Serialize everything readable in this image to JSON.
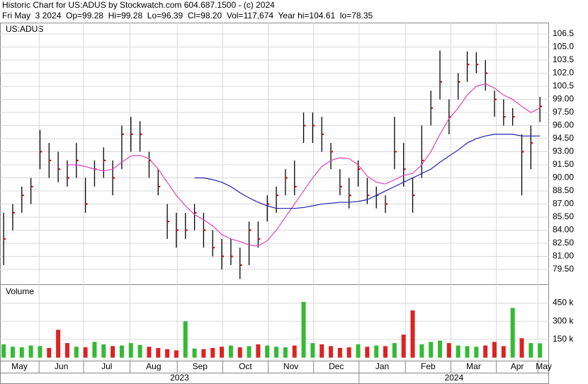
{
  "chart_data": {
    "type": "ohlc",
    "title": "Historic Chart for US:ADUS by Stockwatch.com 604.687.1500 - (c) 2024",
    "subtitle": "Fri May  3 2024  Op=99.28  Hi=99.28  Lo=96.39  Cl=98.20  Vol=117,674  Year hi=104.61  lo=78.35",
    "symbol": "US:ADUS",
    "volume_label": "Volume",
    "x": [
      0,
      1,
      2,
      3,
      4,
      5,
      6,
      7,
      8,
      9,
      10,
      11,
      12,
      13,
      14,
      15,
      16,
      17,
      18,
      19,
      20,
      21,
      22,
      23,
      24,
      25,
      26,
      27,
      28,
      29,
      30,
      31,
      32,
      33,
      34,
      35,
      36,
      37,
      38,
      39,
      40,
      41,
      42,
      43,
      44,
      45,
      46,
      47,
      48,
      49,
      50,
      51,
      52,
      53,
      54,
      55,
      56,
      57,
      58,
      59
    ],
    "xlim": [
      -0.4,
      60
    ],
    "xticks": [
      {
        "value": -0.4,
        "label": "May"
      },
      {
        "value": 3.9,
        "label": "Jun"
      },
      {
        "value": 8.8,
        "label": "Jul"
      },
      {
        "value": 13.9,
        "label": "Aug"
      },
      {
        "value": 19.1,
        "label": "Sep"
      },
      {
        "value": 24.1,
        "label": "Oct"
      },
      {
        "value": 29.1,
        "label": "Nov"
      },
      {
        "value": 34.1,
        "label": "Dec"
      },
      {
        "value": 39.1,
        "label": "Jan"
      },
      {
        "value": 44.2,
        "label": "Feb"
      },
      {
        "value": 49.2,
        "label": "Mar"
      },
      {
        "value": 54.2,
        "label": "Apr"
      },
      {
        "value": 58.8,
        "label": "May"
      }
    ],
    "years": [
      {
        "value": -0.4,
        "label": "2023"
      },
      {
        "value": 39.1,
        "label": "2024"
      }
    ],
    "high": [
      86,
      87,
      89,
      90,
      95.5,
      94,
      93,
      92,
      94,
      90,
      92,
      93.5,
      92,
      96,
      97,
      96.5,
      93,
      91,
      87,
      86,
      86,
      87,
      86,
      84,
      83,
      83,
      82,
      85,
      85,
      88,
      89,
      91,
      92,
      97.5,
      97.5,
      97,
      94,
      91,
      90,
      92,
      90,
      89,
      88,
      97,
      94,
      90,
      96,
      100,
      104.6,
      99,
      102,
      104.5,
      104.4,
      103.5,
      100,
      99,
      98,
      95,
      96,
      99.3
    ],
    "low": [
      80,
      84,
      86,
      87,
      91,
      90,
      89.5,
      89,
      90,
      86,
      89,
      90,
      88,
      91,
      93,
      93,
      90,
      88,
      83,
      82,
      83,
      84,
      82,
      81,
      79.5,
      80,
      78.4,
      80,
      82,
      85,
      86,
      88,
      88,
      94,
      94,
      93,
      91,
      88,
      86.5,
      89,
      87,
      86.5,
      86,
      91,
      89,
      86,
      90,
      96,
      99,
      95,
      99,
      101,
      102,
      100,
      97,
      96,
      96,
      88,
      91,
      96.4
    ],
    "close": [
      83,
      86,
      88,
      89,
      93,
      92,
      91,
      90,
      92,
      87,
      91,
      92,
      90,
      95,
      95,
      95,
      92,
      89,
      85,
      84,
      84,
      86,
      84,
      82,
      81,
      81,
      80,
      84,
      83,
      87,
      88,
      90,
      89,
      96,
      96,
      95,
      93,
      89,
      88,
      91,
      88,
      88,
      87,
      93,
      91,
      88,
      92,
      98,
      101,
      97,
      101,
      103,
      103,
      102,
      99,
      97,
      97,
      93,
      94,
      98.2
    ],
    "ma_short": {
      "color": "#e040c0",
      "values": [
        null,
        null,
        null,
        null,
        null,
        null,
        null,
        91.5,
        91.5,
        91.3,
        91,
        90.8,
        91,
        91.8,
        92.5,
        92.6,
        92.2,
        91,
        89.5,
        88,
        86.8,
        85.8,
        85.2,
        84.5,
        83.5,
        83,
        82.7,
        82.3,
        82.2,
        82.8,
        84,
        85.5,
        87,
        88.5,
        90,
        91.3,
        92,
        92.3,
        92.2,
        91.5,
        90.2,
        89.5,
        89.3,
        89.8,
        90.3,
        90.5,
        91.5,
        93,
        95,
        96.8,
        98,
        99.5,
        100.5,
        100.8,
        100.3,
        99.5,
        99,
        98.2,
        97.5,
        98
      ]
    },
    "ma_long": {
      "color": "#2020b0",
      "values": [
        null,
        null,
        null,
        null,
        null,
        null,
        null,
        null,
        null,
        null,
        null,
        null,
        null,
        null,
        null,
        null,
        null,
        null,
        null,
        null,
        null,
        90,
        90,
        89.8,
        89.5,
        89,
        88.3,
        87.7,
        87.2,
        86.8,
        86.5,
        86.5,
        86.5,
        86.6,
        86.8,
        87,
        87.1,
        87.2,
        87.2,
        87.3,
        87.5,
        88,
        88.5,
        89,
        89.5,
        90,
        90.5,
        91,
        91.8,
        92.5,
        93.2,
        94,
        94.5,
        94.8,
        95,
        95,
        95,
        94.8,
        94.8,
        94.8
      ]
    },
    "volume": [
      110000,
      90000,
      85000,
      100000,
      95000,
      80000,
      230000,
      120000,
      90000,
      85000,
      130000,
      110000,
      95000,
      100000,
      120000,
      105000,
      90000,
      80000,
      70000,
      60000,
      300000,
      75000,
      70000,
      80000,
      90000,
      100000,
      85000,
      95000,
      110000,
      100000,
      90000,
      85000,
      100000,
      460000,
      120000,
      110000,
      95000,
      80000,
      85000,
      110000,
      90000,
      100000,
      95000,
      120000,
      190000,
      390000,
      110000,
      130000,
      140000,
      120000,
      100000,
      95000,
      90000,
      100000,
      130000,
      95000,
      410000,
      160000,
      120000,
      117674
    ],
    "ylim": [
      77.8,
      107.8
    ],
    "yticks": [
      {
        "value": 79.5,
        "label": "79.50"
      },
      {
        "value": 81,
        "label": "81.00"
      },
      {
        "value": 82.5,
        "label": "82.50"
      },
      {
        "value": 84,
        "label": "84.00"
      },
      {
        "value": 85.5,
        "label": "85.50"
      },
      {
        "value": 87,
        "label": "87.00"
      },
      {
        "value": 88.5,
        "label": "88.50"
      },
      {
        "value": 90,
        "label": "90.00"
      },
      {
        "value": 91.5,
        "label": "91.50"
      },
      {
        "value": 93,
        "label": "93.00"
      },
      {
        "value": 94.5,
        "label": "94.50"
      },
      {
        "value": 96,
        "label": "96.00"
      },
      {
        "value": 97.5,
        "label": "97.50"
      },
      {
        "value": 99,
        "label": "99.00"
      },
      {
        "value": 100.5,
        "label": "100.5"
      },
      {
        "value": 102,
        "label": "102.0"
      },
      {
        "value": 103.5,
        "label": "103.5"
      },
      {
        "value": 105,
        "label": "105.0"
      },
      {
        "value": 106.5,
        "label": "106.5"
      }
    ],
    "y2lim": [
      -25000,
      605000
    ],
    "y2ticks": [
      {
        "value": 150000,
        "label": "150 k"
      },
      {
        "value": 300000,
        "label": "300 k"
      },
      {
        "value": 450000,
        "label": "450 k"
      }
    ],
    "bar_color": "#000000",
    "close_color": "#cc0000",
    "up_color": "#33bb33",
    "down_color": "#dd2222",
    "grid": true
  }
}
